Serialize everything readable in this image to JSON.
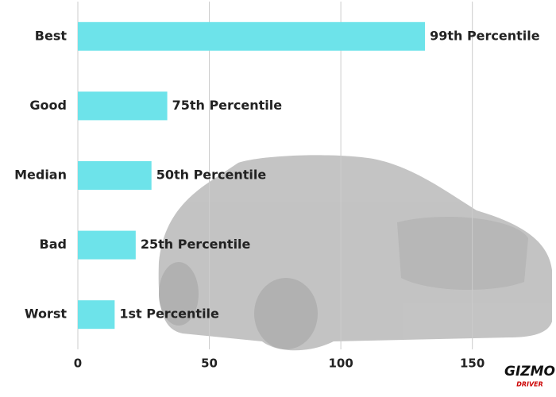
{
  "chart_data": {
    "type": "bar",
    "orientation": "horizontal",
    "categories": [
      "Best",
      "Good",
      "Median",
      "Bad",
      "Worst"
    ],
    "values": [
      132,
      34,
      28,
      22,
      14
    ],
    "bar_labels": [
      "99th Percentile",
      "75th Percentile",
      "50th Percentile",
      "25th Percentile",
      "1st Percentile"
    ],
    "color": "#6de3ea",
    "xlim": [
      0,
      180
    ],
    "xticks": [
      0,
      50,
      100,
      150
    ],
    "grid": true,
    "watermark": {
      "brand": "GIZMO",
      "sub": "DRIVER"
    }
  }
}
